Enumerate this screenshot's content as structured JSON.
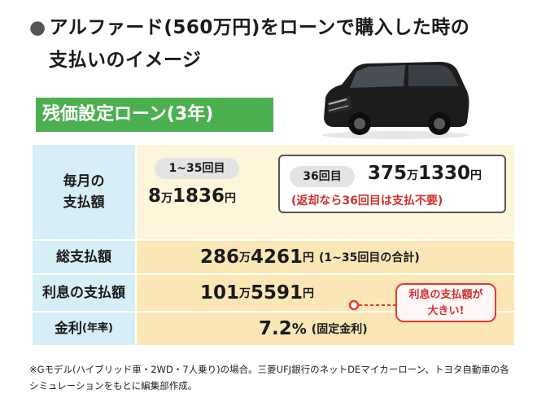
{
  "headline": {
    "bullet": "●",
    "line1": "アルファード(560万円)をローンで購入した時の",
    "line2": "支払いのイメージ"
  },
  "car_image": {
    "icon": "black-minivan-icon",
    "color": "#1c1c1c"
  },
  "loan_title": "残価設定ローン(3年)",
  "rows": {
    "monthly": {
      "label_line1": "毎月の",
      "label_line2": "支払額",
      "pill": "1~35回目",
      "amount_man": "8",
      "amount_rest": "1836",
      "unit_man": "万",
      "unit_yen": "円",
      "final_pill": "36回目",
      "final_man": "375",
      "final_rest": "1330",
      "final_note": "(返却なら36回目は支払不要)"
    },
    "total": {
      "label": "総支払額",
      "amount_man": "286",
      "amount_rest": "4261",
      "unit_man": "万",
      "unit_yen": "円",
      "note": "(1~35回目の合計)"
    },
    "interest": {
      "label": "利息の支払額",
      "amount_man": "101",
      "amount_rest": "5591",
      "unit_man": "万",
      "unit_yen": "円",
      "callout_line1": "利息の支払額が",
      "callout_line2": "大きい!"
    },
    "rate": {
      "label_main": "金利",
      "label_sub": "(年率)",
      "value": "7.2",
      "unit": "%",
      "note": "(固定金利)"
    }
  },
  "footnote": "※Gモデル(ハイブリッド車・2WD・7人乗り)の場合。三菱UFJ銀行のネットDEマイカーローン、トヨタ自動車の各シミュレーションをもとに編集部作成。",
  "colors": {
    "title_green": "#4caf50",
    "label_blue": "#d6eef8",
    "value_cream": "#fdf6da",
    "value_orange": "#fbe7b6",
    "accent_red": "#d32f2f"
  }
}
